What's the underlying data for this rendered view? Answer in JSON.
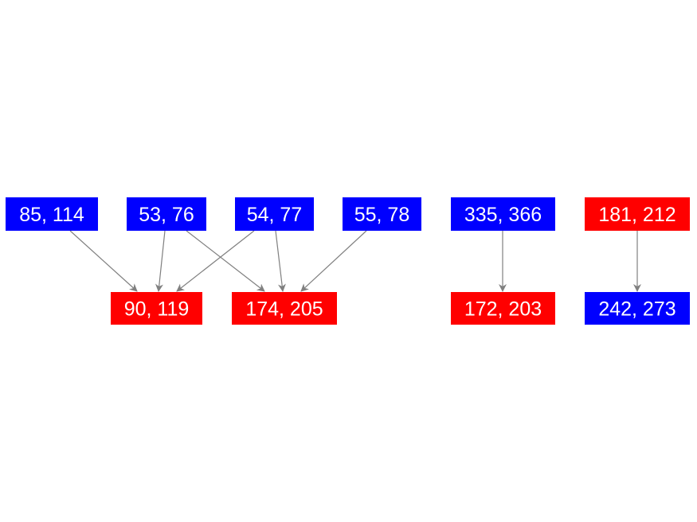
{
  "colors": {
    "blue": "#0000ff",
    "red": "#ff0000",
    "edge": "#808080",
    "text": "#ffffff"
  },
  "nodes": [
    {
      "id": "n1",
      "label": "85, 114",
      "color": "blue"
    },
    {
      "id": "n2",
      "label": "53, 76",
      "color": "blue"
    },
    {
      "id": "n3",
      "label": "54, 77",
      "color": "blue"
    },
    {
      "id": "n4",
      "label": "55, 78",
      "color": "blue"
    },
    {
      "id": "n5",
      "label": "335, 366",
      "color": "blue"
    },
    {
      "id": "n6",
      "label": "181, 212",
      "color": "red"
    },
    {
      "id": "n7",
      "label": "90, 119",
      "color": "red"
    },
    {
      "id": "n8",
      "label": "174, 205",
      "color": "red"
    },
    {
      "id": "n9",
      "label": "172, 203",
      "color": "red"
    },
    {
      "id": "n10",
      "label": "242, 273",
      "color": "blue"
    }
  ],
  "edges": [
    {
      "from": "n1",
      "to": "n7"
    },
    {
      "from": "n2",
      "to": "n7"
    },
    {
      "from": "n2",
      "to": "n8"
    },
    {
      "from": "n3",
      "to": "n7"
    },
    {
      "from": "n3",
      "to": "n8"
    },
    {
      "from": "n4",
      "to": "n8"
    },
    {
      "from": "n5",
      "to": "n9"
    },
    {
      "from": "n6",
      "to": "n10"
    }
  ]
}
